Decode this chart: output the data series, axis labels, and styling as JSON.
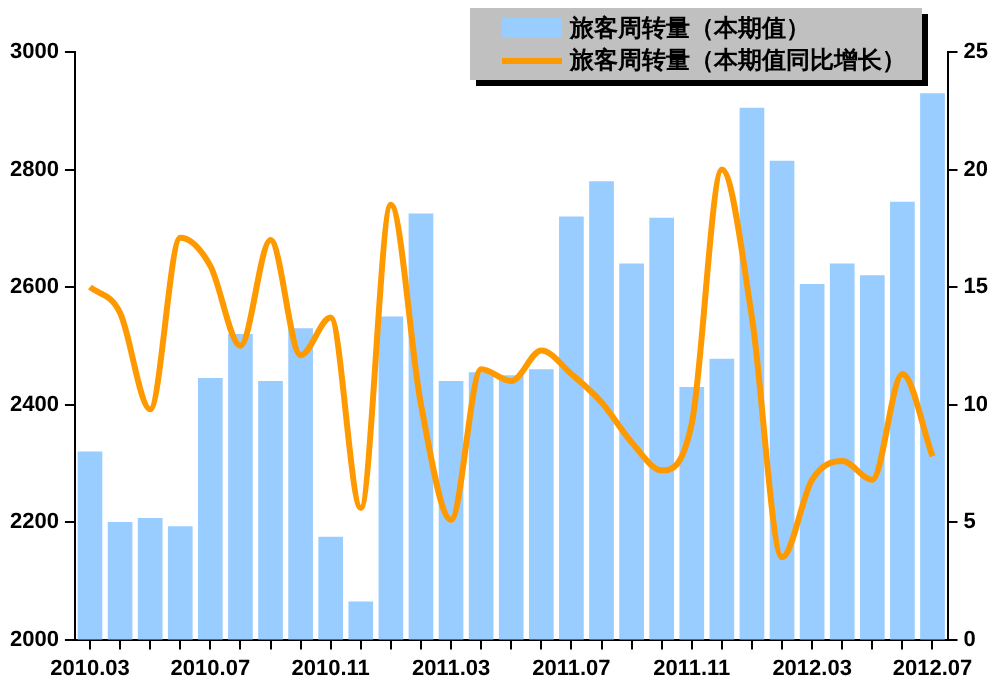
{
  "chart_data": {
    "type": "bar",
    "categories": [
      "2010.03",
      null,
      null,
      null,
      "2010.07",
      null,
      null,
      null,
      "2010.11",
      null,
      null,
      null,
      "2011.03",
      null,
      null,
      null,
      "2011.07",
      null,
      null,
      null,
      "2011.11",
      null,
      null,
      null,
      "2012.03",
      null,
      null,
      null,
      "2012.07"
    ],
    "series": [
      {
        "name": "旅客周转量（本期值）",
        "color": "#99ccff",
        "values": [
          2320,
          2200,
          2207,
          2193,
          2445,
          2520,
          2440,
          2530,
          2175,
          2065,
          2550,
          2725,
          2440,
          2455,
          2450,
          2460,
          2720,
          2780,
          2640,
          2718,
          2430,
          2478,
          2905,
          2815,
          2605,
          2640,
          2620,
          2745,
          2930
        ]
      },
      {
        "name": "旅客周转量（本期值同比增长）",
        "type": "line",
        "axis": "y2",
        "color": "#ff9900",
        "values": [
          15.0,
          13.9,
          9.8,
          17.1,
          15.9,
          12.5,
          17.0,
          12.1,
          13.7,
          5.6,
          18.5,
          10.0,
          5.1,
          11.5,
          11.0,
          12.3,
          11.3,
          10.1,
          8.4,
          7.2,
          9.2,
          20.0,
          13.7,
          3.5,
          6.8,
          7.6,
          6.8,
          11.3,
          7.8
        ]
      }
    ],
    "ylim": [
      2000,
      3000
    ],
    "yticks": [
      2000,
      2200,
      2400,
      2600,
      2800,
      3000
    ],
    "y2lim": [
      0,
      25
    ],
    "y2ticks": [
      0,
      5,
      10,
      15,
      20,
      25
    ],
    "grid": false,
    "legend": "top right",
    "marker": "none",
    "line_style": "solid"
  }
}
